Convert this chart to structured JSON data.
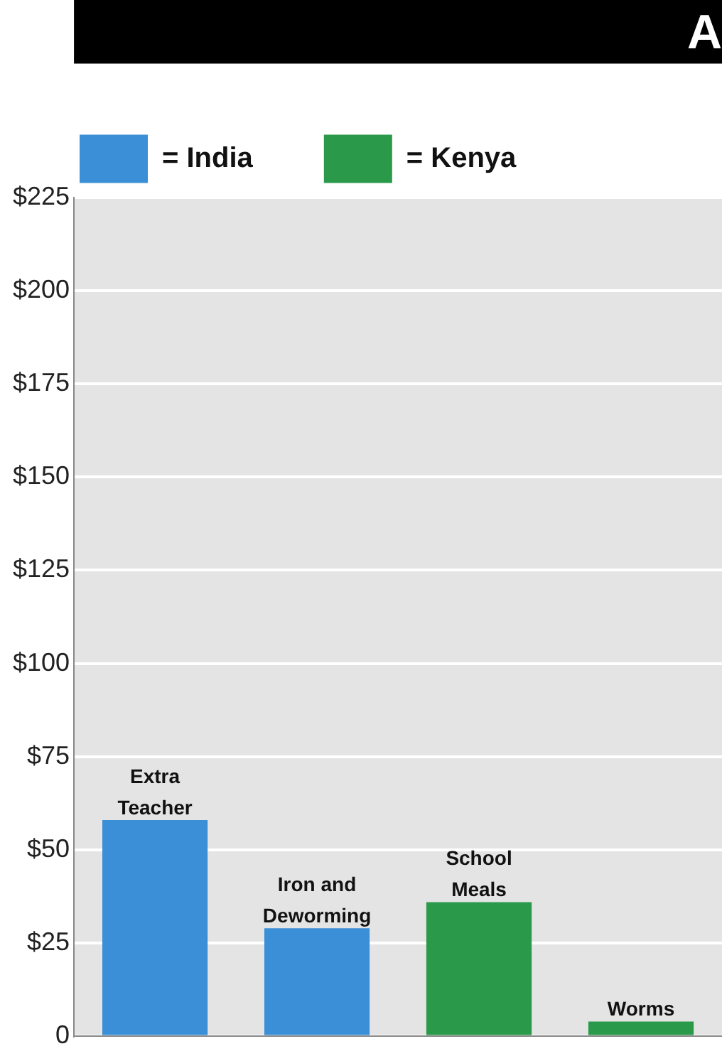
{
  "chart_data": {
    "type": "bar",
    "title": "A",
    "categories": [
      "Extra Teacher",
      "Iron and Deworming",
      "School Meals",
      "Worms"
    ],
    "series": [
      {
        "name": "= India",
        "color": "#3a8fd6",
        "values": [
          58,
          29,
          null,
          null
        ]
      },
      {
        "name": "= Kenya",
        "color": "#2a9a4a",
        "values": [
          null,
          null,
          36,
          4
        ]
      }
    ],
    "ylim": [
      0,
      225
    ],
    "yticks": [
      {
        "value": 0,
        "label": "0"
      },
      {
        "value": 25,
        "label": "$25"
      },
      {
        "value": 50,
        "label": "$50"
      },
      {
        "value": 75,
        "label": "$75"
      },
      {
        "value": 100,
        "label": "$100"
      },
      {
        "value": 125,
        "label": "$125"
      },
      {
        "value": 150,
        "label": "$150"
      },
      {
        "value": 175,
        "label": "$175"
      },
      {
        "value": 200,
        "label": "$200"
      },
      {
        "value": 225,
        "label": "$225"
      }
    ],
    "grid": "y",
    "legend": "top left"
  }
}
